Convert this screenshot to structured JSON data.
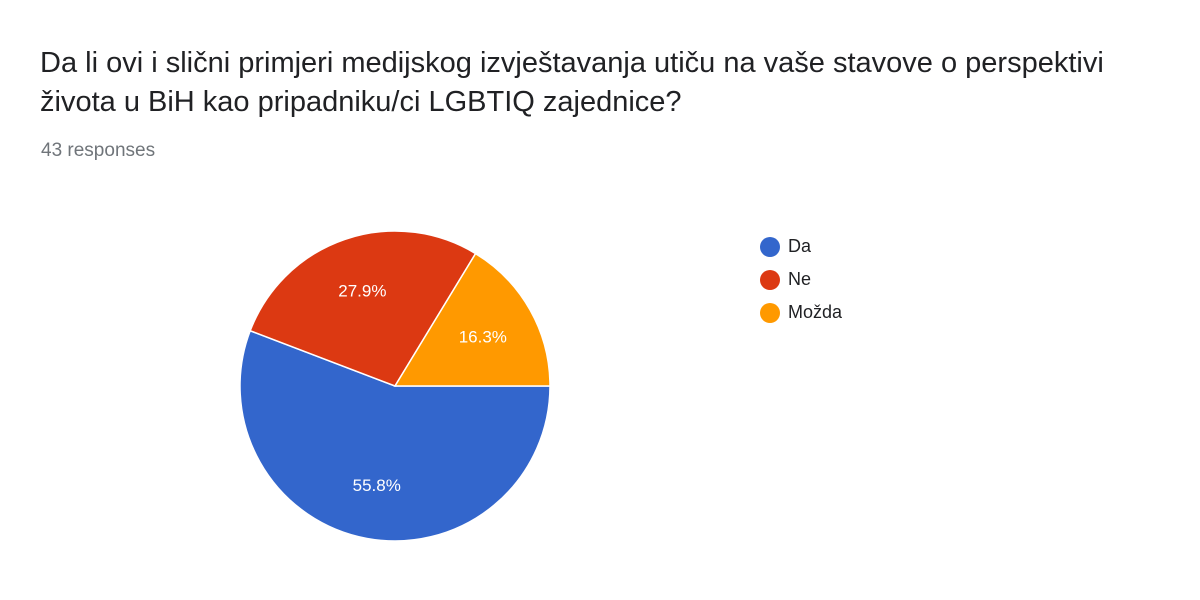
{
  "title": "Da li ovi i slični primjeri medijskog izvještavanja utiču na vaše stavove o perspektivi života u BiH kao pripadniku/ci LGBTIQ zajednice?",
  "subtitle": "43 responses",
  "chart_data": {
    "type": "pie",
    "categories": [
      "Da",
      "Ne",
      "Možda"
    ],
    "values": [
      55.8,
      27.9,
      16.3
    ],
    "labels": [
      "55.8%",
      "27.9%",
      "16.3%"
    ],
    "colors": [
      "#3366cc",
      "#dc3912",
      "#ff9900"
    ],
    "legend_position": "right"
  }
}
